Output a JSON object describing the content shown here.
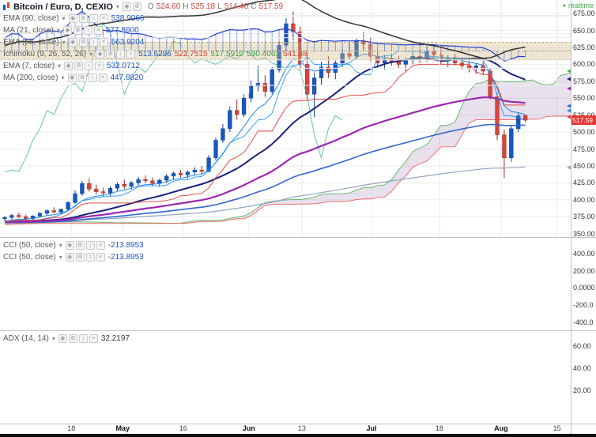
{
  "header": {
    "symbol_title": "Bitcoin / Euro, D, CEXIO",
    "realtime_label": "realtime",
    "ohlc": {
      "o_label": "O",
      "o": "524.60",
      "h_label": "H",
      "h": "525.18",
      "l_label": "L",
      "l": "514.40",
      "c_label": "C",
      "c": "517.59"
    }
  },
  "legend": {
    "button_glyphs": [
      {
        "name": "visibility-icon",
        "glyph": "◉"
      },
      {
        "name": "settings-icon",
        "glyph": "⚙"
      },
      {
        "name": "move-icon",
        "glyph": "↕"
      },
      {
        "name": "delete-icon",
        "glyph": "×"
      }
    ],
    "indicators": [
      {
        "label": "EMA (90, close)",
        "value": "538.9066"
      },
      {
        "label": "MA (21, close)",
        "value": "577.8600"
      },
      {
        "label": "EMA (55, close)",
        "value": "563.9204"
      },
      {
        "label": "Ichimoku (9, 26, 52, 26)",
        "values": [
          "513.6296",
          "522.7515",
          "517.5910",
          "590.4061",
          "541.38"
        ]
      },
      {
        "label": "EMA (7, close)",
        "value": "532.0712"
      },
      {
        "label": "MA (200, close)",
        "value": "447.8820"
      }
    ]
  },
  "cci_panel": {
    "rows": [
      {
        "label": "CCI (50, close)",
        "value": "-213.8953"
      },
      {
        "label": "CCI (50, close)",
        "value": "-213.8953"
      }
    ]
  },
  "adx_panel": {
    "label": "ADX (14, 14)",
    "value": "32.2197"
  },
  "chart_data": {
    "type": "candlestick",
    "symbol": "Bitcoin / Euro",
    "interval": "D",
    "exchange": "CEXIO",
    "price_ylim": [
      345,
      695
    ],
    "price_axis": {
      "ticks": [
        {
          "label": "675.00",
          "v": 675
        },
        {
          "label": "650.00",
          "v": 650
        },
        {
          "label": "625.00",
          "v": 625
        },
        {
          "label": "600.00",
          "v": 600
        },
        {
          "label": "575.00",
          "v": 575
        },
        {
          "label": "550.00",
          "v": 550
        },
        {
          "label": "525.00",
          "v": 525
        },
        {
          "label": "500.00",
          "v": 500
        },
        {
          "label": "475.00",
          "v": 475
        },
        {
          "label": "450.00",
          "v": 450
        },
        {
          "label": "425.00",
          "v": 425
        },
        {
          "label": "400.00",
          "v": 400
        },
        {
          "label": "375.00",
          "v": 375
        },
        {
          "label": "350.00",
          "v": 350
        }
      ],
      "badge": {
        "label": "517.59",
        "value": 517.59,
        "color": "#e53935"
      }
    },
    "time_axis": {
      "ticks": [
        {
          "label": "18",
          "pos": 0.125
        },
        {
          "label": "May",
          "pos": 0.215,
          "bold": true
        },
        {
          "label": "16",
          "pos": 0.321
        },
        {
          "label": "Jun",
          "pos": 0.436,
          "bold": true
        },
        {
          "label": "13",
          "pos": 0.529
        },
        {
          "label": "Jul",
          "pos": 0.651,
          "bold": true
        },
        {
          "label": "18",
          "pos": 0.77
        },
        {
          "label": "Aug",
          "pos": 0.878,
          "bold": true
        },
        {
          "label": "15",
          "pos": 0.976
        }
      ]
    },
    "axis_markers": [
      {
        "value": 590.41,
        "color": "#4caf50"
      },
      {
        "value": 577.86,
        "color": "#1a237e"
      },
      {
        "value": 563.92,
        "color": "#9c27b0"
      },
      {
        "value": 538.91,
        "color": "#3366cc"
      },
      {
        "value": 532.07,
        "color": "#1e88e5"
      },
      {
        "value": 522.75,
        "color": "#e53935"
      },
      {
        "value": 447.88,
        "color": "#90a4c0"
      }
    ],
    "candles": [
      [
        372,
        376,
        368,
        374
      ],
      [
        374,
        379,
        371,
        377
      ],
      [
        377,
        381,
        373,
        375
      ],
      [
        375,
        378,
        370,
        372
      ],
      [
        372,
        377,
        369,
        376
      ],
      [
        376,
        382,
        374,
        380
      ],
      [
        380,
        386,
        377,
        384
      ],
      [
        384,
        389,
        380,
        382
      ],
      [
        382,
        387,
        379,
        386
      ],
      [
        386,
        398,
        384,
        396
      ],
      [
        396,
        414,
        394,
        409
      ],
      [
        409,
        428,
        406,
        424
      ],
      [
        424,
        432,
        412,
        416
      ],
      [
        416,
        422,
        408,
        412
      ],
      [
        412,
        418,
        405,
        410
      ],
      [
        410,
        420,
        405,
        417
      ],
      [
        417,
        426,
        413,
        423
      ],
      [
        423,
        430,
        416,
        420
      ],
      [
        420,
        428,
        415,
        425
      ],
      [
        425,
        434,
        421,
        430
      ],
      [
        430,
        436,
        424,
        428
      ],
      [
        428,
        433,
        420,
        424
      ],
      [
        424,
        431,
        419,
        429
      ],
      [
        429,
        438,
        425,
        435
      ],
      [
        435,
        442,
        430,
        439
      ],
      [
        439,
        444,
        433,
        437
      ],
      [
        437,
        443,
        431,
        441
      ],
      [
        441,
        448,
        436,
        444
      ],
      [
        444,
        450,
        438,
        442
      ],
      [
        442,
        466,
        440,
        462
      ],
      [
        462,
        492,
        458,
        488
      ],
      [
        488,
        512,
        484,
        505
      ],
      [
        505,
        538,
        500,
        532
      ],
      [
        532,
        548,
        518,
        526
      ],
      [
        526,
        556,
        522,
        550
      ],
      [
        550,
        576,
        544,
        568
      ],
      [
        568,
        598,
        560,
        572
      ],
      [
        572,
        584,
        552,
        560
      ],
      [
        560,
        596,
        556,
        592
      ],
      [
        592,
        634,
        588,
        628
      ],
      [
        628,
        668,
        620,
        660
      ],
      [
        660,
        678,
        636,
        648
      ],
      [
        648,
        656,
        592,
        600
      ],
      [
        600,
        618,
        548,
        556
      ],
      [
        556,
        588,
        522,
        580
      ],
      [
        580,
        604,
        570,
        596
      ],
      [
        596,
        612,
        580,
        588
      ],
      [
        588,
        606,
        578,
        602
      ],
      [
        602,
        622,
        596,
        616
      ],
      [
        616,
        630,
        606,
        612
      ],
      [
        612,
        638,
        608,
        634
      ],
      [
        634,
        648,
        622,
        630
      ],
      [
        630,
        640,
        604,
        612
      ],
      [
        612,
        620,
        596,
        602
      ],
      [
        602,
        614,
        592,
        608
      ],
      [
        608,
        616,
        598,
        604
      ],
      [
        604,
        612,
        594,
        600
      ],
      [
        600,
        610,
        590,
        606
      ],
      [
        606,
        618,
        600,
        612
      ],
      [
        612,
        622,
        602,
        608
      ],
      [
        608,
        626,
        604,
        620
      ],
      [
        620,
        628,
        610,
        614
      ],
      [
        614,
        620,
        600,
        606
      ],
      [
        606,
        614,
        596,
        610
      ],
      [
        610,
        616,
        598,
        602
      ],
      [
        602,
        610,
        592,
        598
      ],
      [
        598,
        606,
        588,
        594
      ],
      [
        594,
        602,
        586,
        598
      ],
      [
        598,
        604,
        584,
        590
      ],
      [
        590,
        594,
        548,
        552
      ],
      [
        552,
        558,
        488,
        496
      ],
      [
        496,
        504,
        432,
        462
      ],
      [
        462,
        510,
        456,
        505
      ],
      [
        505,
        528,
        500,
        524
      ],
      [
        524.6,
        525.18,
        514.4,
        517.59
      ]
    ],
    "last": {
      "o": 524.6,
      "h": 525.18,
      "l": 514.4,
      "c": 517.59
    },
    "overlays": [
      {
        "name": "MA",
        "period": 200,
        "current": 447.882,
        "color": "#90a4c0",
        "width": 1.2
      },
      {
        "name": "EMA",
        "period": 90,
        "current": 538.9066,
        "color": "#3366cc",
        "width": 1.6
      },
      {
        "name": "MA",
        "period": 21,
        "current": 577.86,
        "color": "#1a237e",
        "width": 2
      },
      {
        "name": "EMA",
        "period": 55,
        "current": 563.9204,
        "color": "#9c27b0",
        "width": 2.2
      },
      {
        "name": "EMA",
        "period": 7,
        "current": 532.0712,
        "color": "#1e88e5",
        "width": 1
      }
    ],
    "ichimoku": {
      "params": [
        9,
        26,
        52,
        26
      ],
      "values": {
        "tenkan": 513.6296,
        "kijun": 522.7515,
        "chikou": 517.591,
        "senkou_a": 590.4061,
        "senkou_b": 541.38
      },
      "colors": {
        "tenkan": "#2196f3",
        "kijun": "#e53935",
        "chikou": "#26a69a",
        "senkou_a": "#4caf50",
        "senkou_b": "#ef5350",
        "cloud_bull": "rgba(150,120,175,0.22)",
        "cloud_bear": "rgba(235,112,112,0.28)"
      }
    },
    "cci": {
      "period": 50,
      "current": -213.8953,
      "ylim": [
        -490,
        590
      ],
      "band": [
        -100,
        100
      ],
      "color": "#1f3fd0",
      "ticks": [
        {
          "label": "400.00",
          "v": 400
        },
        {
          "label": "200.00",
          "v": 200
        },
        {
          "label": "0.0000",
          "v": 0
        },
        {
          "label": "-200.0",
          "v": -200
        },
        {
          "label": "-400.0",
          "v": -400
        }
      ]
    },
    "adx": {
      "period": 14,
      "smoothing": 14,
      "current": 32.2197,
      "ylim": [
        -10,
        74
      ],
      "color": "#333333",
      "ticks": [
        {
          "label": "60.00",
          "v": 60
        },
        {
          "label": "40.00",
          "v": 40
        },
        {
          "label": "20.00",
          "v": 20
        }
      ]
    }
  }
}
